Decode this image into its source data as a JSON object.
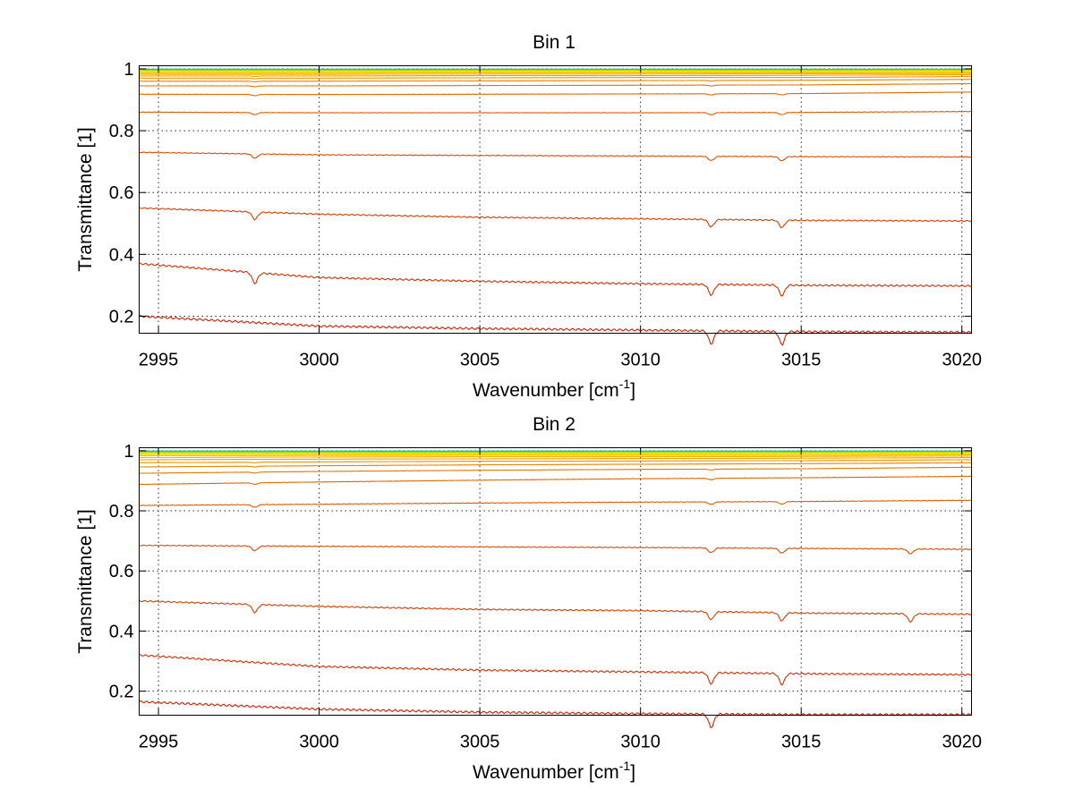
{
  "chart_data": [
    {
      "type": "line",
      "title": "Bin 1",
      "xlabel": "Wavenumber [cm",
      "xlabel_sup": "-1",
      "xlabel_close": "]",
      "ylabel": "Transmittance [1]",
      "xlim": [
        2994.4,
        3020.3
      ],
      "ylim": [
        0.145,
        1.01
      ],
      "xticks": [
        2995,
        3000,
        3005,
        3010,
        3015,
        3020
      ],
      "yticks": [
        0.2,
        0.4,
        0.6,
        0.8,
        1
      ],
      "grid": true,
      "colors": [
        "#CC2200",
        "#D03000",
        "#D43E00",
        "#D84C00",
        "#DC5A00",
        "#E06800",
        "#E47600",
        "#E88400",
        "#EC9200",
        "#F0A000",
        "#F4B000",
        "#F8C000",
        "#FCD000",
        "#FFE000",
        "#E8E800",
        "#B0E000",
        "#60D060",
        "#20C0A0"
      ],
      "series": [
        {
          "x": [
            2994.4,
            3000,
            3005,
            3010,
            3015,
            3020.3
          ],
          "y": [
            0.2,
            0.168,
            0.16,
            0.155,
            0.15,
            0.148
          ],
          "dips": [
            3012.2,
            3014.4
          ]
        },
        {
          "x": [
            2994.4,
            3000,
            3005,
            3010,
            3015,
            3020.3
          ],
          "y": [
            0.37,
            0.325,
            0.313,
            0.305,
            0.3,
            0.298
          ],
          "dips": [
            2998.0,
            3012.2,
            3014.4
          ]
        },
        {
          "x": [
            2994.4,
            3000,
            3005,
            3010,
            3015,
            3020.3
          ],
          "y": [
            0.55,
            0.53,
            0.52,
            0.515,
            0.51,
            0.508
          ],
          "dips": [
            2998.0,
            3012.2,
            3014.4
          ]
        },
        {
          "x": [
            2994.4,
            3000,
            3005,
            3010,
            3015,
            3020.3
          ],
          "y": [
            0.73,
            0.722,
            0.72,
            0.718,
            0.716,
            0.715
          ],
          "dips": [
            2998.0,
            3012.2,
            3014.4
          ]
        },
        {
          "x": [
            2994.4,
            3000,
            3005,
            3010,
            3015,
            3020.3
          ],
          "y": [
            0.86,
            0.858,
            0.858,
            0.858,
            0.859,
            0.862
          ],
          "dips": [
            2998.0,
            3012.2,
            3014.4
          ]
        },
        {
          "x": [
            2994.4,
            3000,
            3005,
            3010,
            3015,
            3020.3
          ],
          "y": [
            0.918,
            0.917,
            0.918,
            0.919,
            0.92,
            0.925
          ],
          "dips": [
            2998.0,
            3012.2,
            3014.4
          ]
        },
        {
          "x": [
            2994.4,
            3000,
            3005,
            3010,
            3015,
            3020.3
          ],
          "y": [
            0.945,
            0.945,
            0.946,
            0.947,
            0.948,
            0.952
          ],
          "dips": [
            2998.0,
            3012.2
          ]
        },
        {
          "x": [
            2994.4,
            3000,
            3005,
            3010,
            3015,
            3020.3
          ],
          "y": [
            0.96,
            0.96,
            0.961,
            0.962,
            0.963,
            0.966
          ],
          "dips": [
            2998.0,
            3012.2
          ]
        },
        {
          "x": [
            2994.4,
            3000,
            3005,
            3010,
            3015,
            3020.3
          ],
          "y": [
            0.97,
            0.97,
            0.971,
            0.972,
            0.972,
            0.975
          ],
          "dips": [
            2998.0
          ]
        },
        {
          "x": [
            2994.4,
            3000,
            3005,
            3010,
            3015,
            3020.3
          ],
          "y": [
            0.977,
            0.977,
            0.978,
            0.978,
            0.979,
            0.981
          ],
          "dips": [
            2998.0
          ]
        },
        {
          "x": [
            2994.4,
            3000,
            3005,
            3010,
            3015,
            3020.3
          ],
          "y": [
            0.982,
            0.982,
            0.983,
            0.983,
            0.984,
            0.985
          ],
          "dips": []
        },
        {
          "x": [
            2994.4,
            3000,
            3005,
            3010,
            3015,
            3020.3
          ],
          "y": [
            0.986,
            0.986,
            0.987,
            0.987,
            0.987,
            0.988
          ],
          "dips": []
        },
        {
          "x": [
            2994.4,
            3000,
            3005,
            3010,
            3015,
            3020.3
          ],
          "y": [
            0.989,
            0.989,
            0.99,
            0.99,
            0.99,
            0.991
          ],
          "dips": []
        },
        {
          "x": [
            2994.4,
            3000,
            3005,
            3010,
            3015,
            3020.3
          ],
          "y": [
            0.992,
            0.992,
            0.992,
            0.992,
            0.993,
            0.993
          ],
          "dips": []
        },
        {
          "x": [
            2994.4,
            3000,
            3005,
            3010,
            3015,
            3020.3
          ],
          "y": [
            0.994,
            0.994,
            0.994,
            0.995,
            0.995,
            0.995
          ],
          "dips": []
        },
        {
          "x": [
            2994.4,
            3000,
            3005,
            3010,
            3015,
            3020.3
          ],
          "y": [
            0.996,
            0.996,
            0.996,
            0.996,
            0.996,
            0.997
          ],
          "dips": []
        },
        {
          "x": [
            2994.4,
            3000,
            3005,
            3010,
            3015,
            3020.3
          ],
          "y": [
            0.997,
            0.997,
            0.998,
            0.998,
            0.998,
            0.998
          ],
          "dips": []
        },
        {
          "x": [
            2994.4,
            3000,
            3005,
            3010,
            3015,
            3020.3
          ],
          "y": [
            0.999,
            0.999,
            0.999,
            0.999,
            0.999,
            0.999
          ],
          "dips": []
        }
      ]
    },
    {
      "type": "line",
      "title": "Bin 2",
      "xlabel": "Wavenumber [cm",
      "xlabel_sup": "-1",
      "xlabel_close": "]",
      "ylabel": "Transmittance [1]",
      "xlim": [
        2994.4,
        3020.3
      ],
      "ylim": [
        0.12,
        1.01
      ],
      "xticks": [
        2995,
        3000,
        3005,
        3010,
        3015,
        3020
      ],
      "yticks": [
        0.2,
        0.4,
        0.6,
        0.8,
        1
      ],
      "grid": true,
      "colors": [
        "#CC2200",
        "#D03000",
        "#D43E00",
        "#D84C00",
        "#DC5A00",
        "#E06800",
        "#E47600",
        "#E88400",
        "#EC9200",
        "#F0A000",
        "#F4B000",
        "#F8C000",
        "#FCD000",
        "#FFE000",
        "#E8E800",
        "#B0E000",
        "#60D060",
        "#20C0A0"
      ],
      "series": [
        {
          "x": [
            2994.4,
            3000,
            3005,
            3010,
            3015,
            3020.3
          ],
          "y": [
            0.165,
            0.14,
            0.13,
            0.125,
            0.122,
            0.122
          ],
          "dips": [
            3012.2
          ]
        },
        {
          "x": [
            2994.4,
            3000,
            3005,
            3010,
            3015,
            3020.3
          ],
          "y": [
            0.32,
            0.282,
            0.27,
            0.264,
            0.258,
            0.255
          ],
          "dips": [
            3012.2,
            3014.4
          ]
        },
        {
          "x": [
            2994.4,
            3000,
            3005,
            3010,
            3015,
            3020.3
          ],
          "y": [
            0.5,
            0.482,
            0.472,
            0.468,
            0.46,
            0.456
          ],
          "dips": [
            2998.0,
            3012.2,
            3014.4,
            3018.4
          ]
        },
        {
          "x": [
            2994.4,
            3000,
            3005,
            3010,
            3015,
            3020.3
          ],
          "y": [
            0.685,
            0.682,
            0.68,
            0.678,
            0.675,
            0.672
          ],
          "dips": [
            2998.0,
            3012.2,
            3014.4,
            3018.4
          ]
        },
        {
          "x": [
            2994.4,
            3000,
            3005,
            3010,
            3015,
            3020.3
          ],
          "y": [
            0.818,
            0.822,
            0.826,
            0.829,
            0.831,
            0.835
          ],
          "dips": [
            2998.0,
            3012.2,
            3014.4
          ]
        },
        {
          "x": [
            2994.4,
            3000,
            3005,
            3010,
            3015,
            3020.3
          ],
          "y": [
            0.888,
            0.896,
            0.902,
            0.907,
            0.91,
            0.915
          ],
          "dips": [
            2998.0,
            3012.2
          ]
        },
        {
          "x": [
            2994.4,
            3000,
            3005,
            3010,
            3015,
            3020.3
          ],
          "y": [
            0.925,
            0.931,
            0.935,
            0.938,
            0.94,
            0.945
          ],
          "dips": [
            2998.0,
            3012.2
          ]
        },
        {
          "x": [
            2994.4,
            3000,
            3005,
            3010,
            3015,
            3020.3
          ],
          "y": [
            0.946,
            0.95,
            0.953,
            0.955,
            0.957,
            0.96
          ],
          "dips": [
            2998.0
          ]
        },
        {
          "x": [
            2994.4,
            3000,
            3005,
            3010,
            3015,
            3020.3
          ],
          "y": [
            0.96,
            0.963,
            0.965,
            0.966,
            0.967,
            0.97
          ],
          "dips": [
            2998.0
          ]
        },
        {
          "x": [
            2994.4,
            3000,
            3005,
            3010,
            3015,
            3020.3
          ],
          "y": [
            0.97,
            0.972,
            0.973,
            0.974,
            0.975,
            0.977
          ],
          "dips": []
        },
        {
          "x": [
            2994.4,
            3000,
            3005,
            3010,
            3015,
            3020.3
          ],
          "y": [
            0.977,
            0.979,
            0.98,
            0.98,
            0.981,
            0.982
          ],
          "dips": []
        },
        {
          "x": [
            2994.4,
            3000,
            3005,
            3010,
            3015,
            3020.3
          ],
          "y": [
            0.983,
            0.984,
            0.985,
            0.985,
            0.985,
            0.986
          ],
          "dips": []
        },
        {
          "x": [
            2994.4,
            3000,
            3005,
            3010,
            3015,
            3020.3
          ],
          "y": [
            0.987,
            0.988,
            0.988,
            0.988,
            0.989,
            0.989
          ],
          "dips": []
        },
        {
          "x": [
            2994.4,
            3000,
            3005,
            3010,
            3015,
            3020.3
          ],
          "y": [
            0.99,
            0.991,
            0.991,
            0.991,
            0.991,
            0.992
          ],
          "dips": []
        },
        {
          "x": [
            2994.4,
            3000,
            3005,
            3010,
            3015,
            3020.3
          ],
          "y": [
            0.993,
            0.993,
            0.993,
            0.994,
            0.994,
            0.994
          ],
          "dips": []
        },
        {
          "x": [
            2994.4,
            3000,
            3005,
            3010,
            3015,
            3020.3
          ],
          "y": [
            0.995,
            0.995,
            0.995,
            0.996,
            0.996,
            0.996
          ],
          "dips": []
        },
        {
          "x": [
            2994.4,
            3000,
            3005,
            3010,
            3015,
            3020.3
          ],
          "y": [
            0.997,
            0.997,
            0.997,
            0.997,
            0.997,
            0.998
          ],
          "dips": []
        },
        {
          "x": [
            2994.4,
            3000,
            3005,
            3010,
            3015,
            3020.3
          ],
          "y": [
            0.999,
            0.999,
            0.999,
            0.999,
            0.999,
            0.999
          ],
          "dips": []
        }
      ]
    }
  ]
}
